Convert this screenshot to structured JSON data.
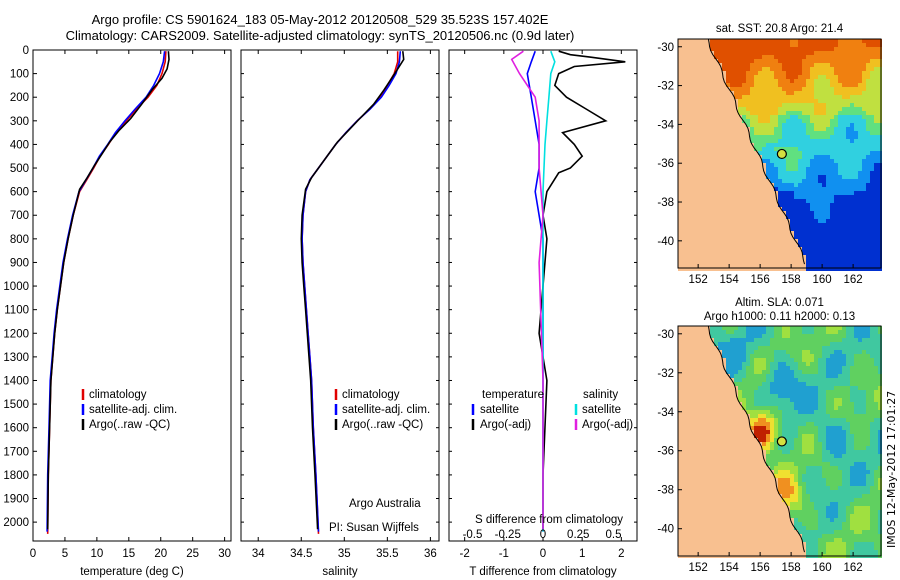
{
  "header": {
    "line1": "Argo profile: CS 5901624_183 05-May-2012 20120508_529 35.523S 157.402E",
    "line2": "Climatology: CARS2009. Satellite-adjusted climatology: synTS_20120506.nc (0.9d later)"
  },
  "side_label": "IMOS 12-May-2012 17:01:27",
  "colors": {
    "climatology": "#e00000",
    "satellite": "#0000ff",
    "argo": "#000000",
    "sat_salinity": "#00e0e0",
    "argo_adj_salinity": "#e020e0"
  },
  "chart_data": [
    {
      "type": "line",
      "id": "temperature",
      "xlabel": "temperature (deg C)",
      "ylabel": "",
      "xlim": [
        0,
        31
      ],
      "ylim": [
        2080,
        0
      ],
      "xticks": [
        "0",
        "5",
        "10",
        "15",
        "20",
        "25",
        "30"
      ],
      "xtick_values": [
        0,
        5,
        10,
        15,
        20,
        25,
        30
      ],
      "yticks": [
        "0",
        "100",
        "200",
        "300",
        "400",
        "500",
        "600",
        "700",
        "800",
        "900",
        "1000",
        "1100",
        "1200",
        "1300",
        "1400",
        "1500",
        "1600",
        "1700",
        "1800",
        "1900",
        "2000"
      ],
      "ytick_values": [
        0,
        100,
        200,
        300,
        400,
        500,
        600,
        700,
        800,
        900,
        1000,
        1100,
        1200,
        1300,
        1400,
        1500,
        1600,
        1700,
        1800,
        1900,
        2000
      ],
      "legend": [
        "climatology",
        "satellite-adj. clim.",
        "Argo(..raw -QC)"
      ],
      "series": [
        {
          "name": "climatology",
          "color": "#e00000",
          "x": [
            20.8,
            20.7,
            20.2,
            19.4,
            18.0,
            16.2,
            14.6,
            13.0,
            11.8,
            10.5,
            9.5,
            8.4,
            7.3,
            6.3,
            5.5,
            4.8,
            4.3,
            3.8,
            3.4,
            3.1,
            2.8,
            2.6,
            2.4,
            2.3
          ],
          "y": [
            5,
            50,
            100,
            150,
            200,
            250,
            300,
            350,
            400,
            450,
            500,
            550,
            600,
            700,
            800,
            900,
            1000,
            1100,
            1200,
            1300,
            1400,
            1600,
            1800,
            2050
          ]
        },
        {
          "name": "satellite-adj. clim.",
          "color": "#0000ff",
          "x": [
            20.6,
            20.4,
            19.8,
            18.9,
            17.7,
            16.0,
            14.4,
            12.9,
            11.7,
            10.4,
            9.4,
            8.3,
            7.2,
            6.2,
            5.4,
            4.7,
            4.2,
            3.7,
            3.3,
            3.0,
            2.7,
            2.5,
            2.3,
            2.2
          ],
          "y": [
            5,
            50,
            100,
            150,
            200,
            250,
            300,
            350,
            400,
            450,
            500,
            550,
            600,
            700,
            800,
            900,
            1000,
            1100,
            1200,
            1300,
            1400,
            1600,
            1800,
            2040
          ]
        },
        {
          "name": "Argo(..raw -QC)",
          "color": "#000000",
          "x": [
            21.2,
            21.3,
            21.0,
            20.2,
            18.6,
            17.0,
            15.3,
            13.5,
            12.0,
            10.8,
            9.6,
            8.5,
            7.3,
            6.3,
            5.5,
            4.8,
            4.3,
            3.8,
            3.4,
            3.1,
            2.8,
            2.6,
            2.4,
            2.3
          ],
          "y": [
            5,
            40,
            80,
            120,
            170,
            230,
            290,
            340,
            390,
            440,
            490,
            540,
            590,
            700,
            800,
            900,
            1000,
            1100,
            1200,
            1300,
            1400,
            1600,
            1800,
            2030
          ]
        }
      ]
    },
    {
      "type": "line",
      "id": "salinity",
      "xlabel": "salinity",
      "xlim": [
        33.8,
        36.1
      ],
      "ylim": [
        2080,
        0
      ],
      "xticks": [
        "34",
        "34.5",
        "35",
        "35.5",
        "36"
      ],
      "xtick_values": [
        34,
        34.5,
        35,
        35.5,
        36
      ],
      "legend": [
        "climatology",
        "satellite-adj. clim.",
        "Argo(..raw -QC)"
      ],
      "annotation": [
        "Argo Australia",
        "PI: Susan Wijffels"
      ],
      "series": [
        {
          "name": "climatology",
          "color": "#e00000",
          "x": [
            35.62,
            35.62,
            35.58,
            35.5,
            35.42,
            35.3,
            35.15,
            35.02,
            34.9,
            34.8,
            34.7,
            34.6,
            34.55,
            34.52,
            34.51,
            34.52,
            34.54,
            34.56,
            34.58,
            34.6,
            34.62,
            34.64,
            34.67,
            34.7
          ],
          "y": [
            5,
            50,
            100,
            150,
            200,
            250,
            300,
            350,
            400,
            450,
            500,
            550,
            600,
            700,
            800,
            900,
            1000,
            1100,
            1200,
            1300,
            1400,
            1600,
            1800,
            2050
          ]
        },
        {
          "name": "satellite-adj. clim.",
          "color": "#0000ff",
          "x": [
            35.65,
            35.64,
            35.6,
            35.52,
            35.43,
            35.3,
            35.15,
            35.02,
            34.9,
            34.8,
            34.7,
            34.6,
            34.55,
            34.52,
            34.51,
            34.52,
            34.54,
            34.56,
            34.58,
            34.6,
            34.62,
            34.64,
            34.67,
            34.7
          ],
          "y": [
            5,
            50,
            100,
            150,
            200,
            250,
            300,
            350,
            400,
            450,
            500,
            550,
            600,
            700,
            800,
            900,
            1000,
            1100,
            1200,
            1300,
            1400,
            1600,
            1800,
            2040
          ]
        },
        {
          "name": "Argo(..raw -QC)",
          "color": "#000000",
          "x": [
            35.68,
            35.69,
            35.62,
            35.55,
            35.46,
            35.34,
            35.18,
            35.05,
            34.92,
            34.82,
            34.72,
            34.62,
            34.55,
            34.51,
            34.5,
            34.51,
            34.53,
            34.55,
            34.57,
            34.59,
            34.61,
            34.63,
            34.66,
            34.69
          ],
          "y": [
            5,
            40,
            80,
            120,
            170,
            230,
            290,
            340,
            390,
            440,
            490,
            540,
            590,
            700,
            800,
            900,
            1000,
            1100,
            1200,
            1300,
            1400,
            1600,
            1800,
            2030
          ]
        }
      ]
    },
    {
      "type": "line",
      "id": "difference",
      "xlabel": "T difference from climatology",
      "top_label": "S difference from climatology",
      "xlim": [
        -2.4,
        2.4
      ],
      "ylim": [
        2080,
        0
      ],
      "xticks": [
        "-2",
        "-1",
        "0",
        "1",
        "2"
      ],
      "xtick_values": [
        -2,
        -1,
        0,
        1,
        2
      ],
      "sticks": [
        "-0.5",
        "-0.25",
        "0",
        "0.25",
        "0.5"
      ],
      "stick_values": [
        -1.8,
        -0.9,
        0,
        0.9,
        1.8
      ],
      "legend_temperature": [
        "temperature",
        "satellite",
        "Argo(-adj)"
      ],
      "legend_salinity": [
        "salinity",
        "satellite",
        "Argo(-adj)"
      ],
      "series": [
        {
          "name": "temperature satellite",
          "color": "#0000ff",
          "x": [
            -0.2,
            -0.3,
            -0.4,
            -0.3,
            -0.2,
            -0.1,
            -0.1,
            -0.2,
            -0.1,
            0,
            0,
            0,
            0,
            0
          ],
          "y": [
            5,
            50,
            100,
            200,
            300,
            400,
            500,
            600,
            700,
            800,
            1000,
            1400,
            1800,
            2040
          ]
        },
        {
          "name": "temperature Argo(-adj)",
          "color": "#000000",
          "x": [
            0.4,
            0.7,
            1.2,
            2.1,
            0.8,
            0.4,
            0.3,
            0.6,
            1.1,
            1.6,
            0.5,
            0.8,
            1.0,
            0.7,
            0.4,
            0.1,
            0,
            0.1,
            0,
            -0.1,
            0.1,
            0,
            0
          ],
          "y": [
            5,
            20,
            30,
            50,
            70,
            100,
            150,
            200,
            250,
            300,
            350,
            400,
            450,
            500,
            520,
            600,
            700,
            800,
            1000,
            1200,
            1400,
            1800,
            2030
          ]
        },
        {
          "name": "salinity satellite",
          "color": "#00e0e0",
          "x": [
            0.2,
            0.3,
            0.2,
            0.15,
            0.1,
            0.05,
            0,
            0,
            0,
            0
          ],
          "y": [
            5,
            50,
            100,
            200,
            300,
            400,
            600,
            1000,
            1500,
            2040
          ]
        },
        {
          "name": "salinity Argo(-adj)",
          "color": "#e020e0",
          "x": [
            -0.5,
            -0.8,
            -0.6,
            -0.2,
            -0.1,
            -0.1,
            0,
            -0.1,
            0,
            0
          ],
          "y": [
            5,
            40,
            100,
            200,
            300,
            500,
            700,
            900,
            1400,
            2030
          ]
        }
      ]
    }
  ],
  "maps": [
    {
      "id": "sst-map",
      "title": "sat. SST: 20.8 Argo: 21.4",
      "xticks": [
        "152",
        "154",
        "156",
        "158",
        "160",
        "162"
      ],
      "yticks": [
        "-30",
        "-32",
        "-34",
        "-36",
        "-38",
        "-40"
      ]
    },
    {
      "id": "sla-map",
      "title_line1": "Altim. SLA: 0.071",
      "title_line2": "Argo h1000: 0.11 h2000: 0.13",
      "xticks": [
        "152",
        "154",
        "156",
        "158",
        "160",
        "162"
      ],
      "yticks": [
        "-30",
        "-32",
        "-34",
        "-36",
        "-38",
        "-40"
      ]
    }
  ]
}
